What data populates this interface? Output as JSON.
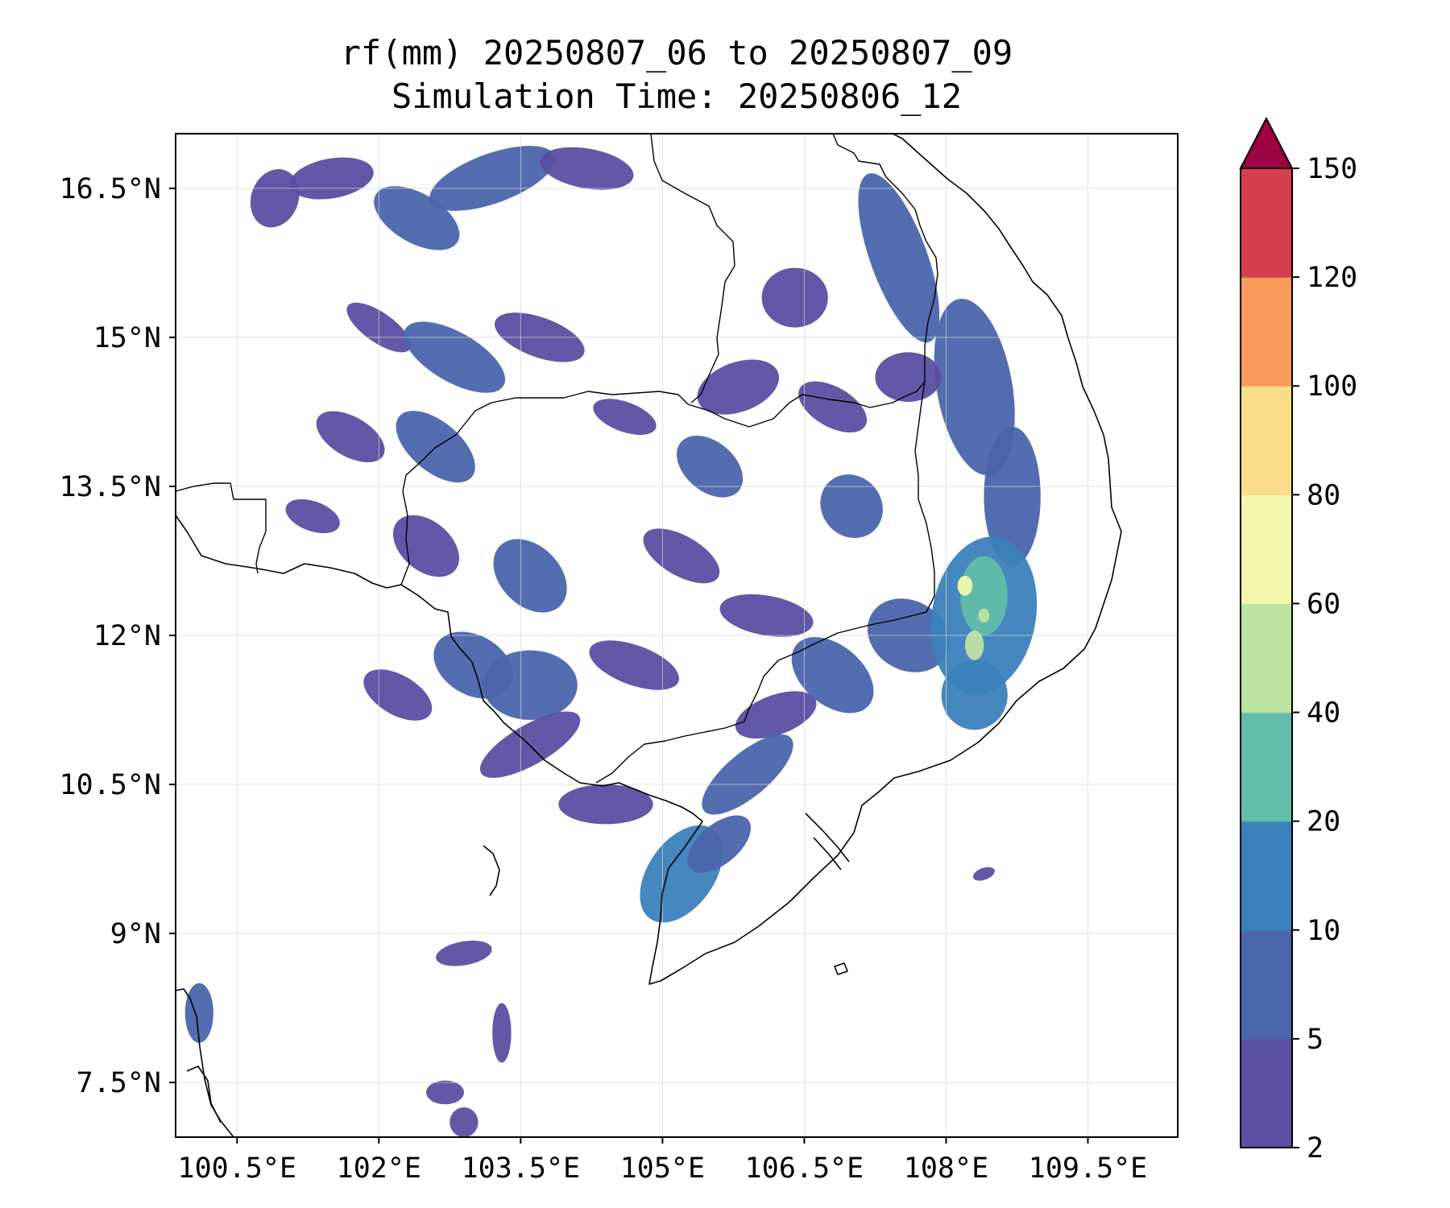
{
  "title": {
    "line1": "rf(mm) 20250807_06 to 20250807_09",
    "line2": "Simulation Time: 20250806_12"
  },
  "map": {
    "lon_range": [
      99.85,
      110.45
    ],
    "lat_range": [
      6.95,
      17.05
    ],
    "lon_ticks": [
      {
        "value": 100.5,
        "label": "100.5°E"
      },
      {
        "value": 102.0,
        "label": "102°E"
      },
      {
        "value": 103.5,
        "label": "103.5°E"
      },
      {
        "value": 105.0,
        "label": "105°E"
      },
      {
        "value": 106.5,
        "label": "106.5°E"
      },
      {
        "value": 108.0,
        "label": "108°E"
      },
      {
        "value": 109.5,
        "label": "109.5°E"
      }
    ],
    "lat_ticks": [
      {
        "value": 16.5,
        "label": "16.5°N"
      },
      {
        "value": 15.0,
        "label": "15°N"
      },
      {
        "value": 13.5,
        "label": "13.5°N"
      },
      {
        "value": 12.0,
        "label": "12°N"
      },
      {
        "value": 10.5,
        "label": "10.5°N"
      },
      {
        "value": 9.0,
        "label": "9°N"
      },
      {
        "value": 7.5,
        "label": "7.5°N"
      }
    ],
    "grid": true
  },
  "colorbar": {
    "levels": [
      {
        "value": 2,
        "label": "2"
      },
      {
        "value": 5,
        "label": "5"
      },
      {
        "value": 10,
        "label": "10"
      },
      {
        "value": 20,
        "label": "20"
      },
      {
        "value": 40,
        "label": "40"
      },
      {
        "value": 60,
        "label": "60"
      },
      {
        "value": 80,
        "label": "80"
      },
      {
        "value": 100,
        "label": "100"
      },
      {
        "value": 120,
        "label": "120"
      },
      {
        "value": 150,
        "label": "150"
      }
    ],
    "colors": [
      "#5a4fa2",
      "#4b65ad",
      "#3b81bb",
      "#62bda8",
      "#bde3a0",
      "#f2f8ab",
      "#fbdd89",
      "#f89b5a",
      "#d53e4f"
    ],
    "extend_color": "#9e0142"
  },
  "rain_cells": [
    {
      "lon": 100.9,
      "lat": 16.4,
      "rx": 0.25,
      "ry": 0.3,
      "rot": 20,
      "level": 0
    },
    {
      "lon": 101.5,
      "lat": 16.6,
      "rx": 0.45,
      "ry": 0.2,
      "rot": -10,
      "level": 0
    },
    {
      "lon": 102.4,
      "lat": 16.2,
      "rx": 0.5,
      "ry": 0.25,
      "rot": 30,
      "level": 1
    },
    {
      "lon": 103.2,
      "lat": 16.6,
      "rx": 0.7,
      "ry": 0.25,
      "rot": -20,
      "level": 1
    },
    {
      "lon": 104.2,
      "lat": 16.7,
      "rx": 0.5,
      "ry": 0.2,
      "rot": 10,
      "level": 0
    },
    {
      "lon": 102.0,
      "lat": 15.1,
      "rx": 0.4,
      "ry": 0.15,
      "rot": 35,
      "level": 0
    },
    {
      "lon": 102.8,
      "lat": 14.8,
      "rx": 0.6,
      "ry": 0.25,
      "rot": 30,
      "level": 1
    },
    {
      "lon": 103.7,
      "lat": 15.0,
      "rx": 0.5,
      "ry": 0.2,
      "rot": 20,
      "level": 0
    },
    {
      "lon": 101.7,
      "lat": 14.0,
      "rx": 0.4,
      "ry": 0.2,
      "rot": 30,
      "level": 0
    },
    {
      "lon": 102.6,
      "lat": 13.9,
      "rx": 0.5,
      "ry": 0.25,
      "rot": 40,
      "level": 1
    },
    {
      "lon": 101.3,
      "lat": 13.2,
      "rx": 0.3,
      "ry": 0.15,
      "rot": 20,
      "level": 0
    },
    {
      "lon": 102.5,
      "lat": 12.9,
      "rx": 0.4,
      "ry": 0.25,
      "rot": 40,
      "level": 0
    },
    {
      "lon": 103.6,
      "lat": 12.6,
      "rx": 0.45,
      "ry": 0.3,
      "rot": 45,
      "level": 1
    },
    {
      "lon": 103.0,
      "lat": 11.7,
      "rx": 0.45,
      "ry": 0.3,
      "rot": 30,
      "level": 1
    },
    {
      "lon": 103.6,
      "lat": 11.5,
      "rx": 0.5,
      "ry": 0.35,
      "rot": 0,
      "level": 1
    },
    {
      "lon": 102.2,
      "lat": 11.4,
      "rx": 0.4,
      "ry": 0.2,
      "rot": 30,
      "level": 0
    },
    {
      "lon": 103.6,
      "lat": 10.9,
      "rx": 0.6,
      "ry": 0.2,
      "rot": -30,
      "level": 0
    },
    {
      "lon": 104.4,
      "lat": 10.3,
      "rx": 0.5,
      "ry": 0.2,
      "rot": 0,
      "level": 0
    },
    {
      "lon": 104.7,
      "lat": 11.7,
      "rx": 0.5,
      "ry": 0.2,
      "rot": 20,
      "level": 0
    },
    {
      "lon": 105.2,
      "lat": 12.8,
      "rx": 0.45,
      "ry": 0.2,
      "rot": 30,
      "level": 0
    },
    {
      "lon": 105.5,
      "lat": 13.7,
      "rx": 0.4,
      "ry": 0.25,
      "rot": 40,
      "level": 1
    },
    {
      "lon": 104.6,
      "lat": 14.2,
      "rx": 0.35,
      "ry": 0.15,
      "rot": 20,
      "level": 0
    },
    {
      "lon": 105.8,
      "lat": 14.5,
      "rx": 0.45,
      "ry": 0.25,
      "rot": -20,
      "level": 0
    },
    {
      "lon": 106.4,
      "lat": 15.4,
      "rx": 0.35,
      "ry": 0.3,
      "rot": 0,
      "level": 0
    },
    {
      "lon": 106.8,
      "lat": 14.3,
      "rx": 0.4,
      "ry": 0.2,
      "rot": 30,
      "level": 0
    },
    {
      "lon": 107.0,
      "lat": 13.3,
      "rx": 0.35,
      "ry": 0.3,
      "rot": 50,
      "level": 1
    },
    {
      "lon": 106.1,
      "lat": 12.2,
      "rx": 0.5,
      "ry": 0.2,
      "rot": 10,
      "level": 0
    },
    {
      "lon": 106.2,
      "lat": 11.2,
      "rx": 0.45,
      "ry": 0.2,
      "rot": -20,
      "level": 0
    },
    {
      "lon": 106.8,
      "lat": 11.6,
      "rx": 0.5,
      "ry": 0.3,
      "rot": 40,
      "level": 1
    },
    {
      "lon": 107.6,
      "lat": 12.0,
      "rx": 0.45,
      "ry": 0.35,
      "rot": 30,
      "level": 1
    },
    {
      "lon": 105.9,
      "lat": 10.6,
      "rx": 0.6,
      "ry": 0.22,
      "rot": -40,
      "level": 1
    },
    {
      "lon": 105.2,
      "lat": 9.6,
      "rx": 0.35,
      "ry": 0.55,
      "rot": 35,
      "level": 2
    },
    {
      "lon": 105.6,
      "lat": 9.9,
      "rx": 0.4,
      "ry": 0.2,
      "rot": -40,
      "level": 1
    },
    {
      "lon": 107.5,
      "lat": 15.8,
      "rx": 0.3,
      "ry": 0.9,
      "rot": -20,
      "level": 1
    },
    {
      "lon": 108.3,
      "lat": 14.5,
      "rx": 0.4,
      "ry": 0.9,
      "rot": -10,
      "level": 1
    },
    {
      "lon": 108.7,
      "lat": 13.4,
      "rx": 0.3,
      "ry": 0.7,
      "rot": 0,
      "level": 1
    },
    {
      "lon": 107.6,
      "lat": 14.6,
      "rx": 0.35,
      "ry": 0.25,
      "rot": 0,
      "level": 0
    },
    {
      "lon": 108.4,
      "lat": 12.2,
      "rx": 0.55,
      "ry": 0.8,
      "rot": 10,
      "level": 2
    },
    {
      "lon": 108.3,
      "lat": 11.4,
      "rx": 0.35,
      "ry": 0.35,
      "rot": 0,
      "level": 2
    },
    {
      "lon": 108.4,
      "lat": 12.4,
      "rx": 0.25,
      "ry": 0.4,
      "rot": 0,
      "level": 3
    },
    {
      "lon": 108.3,
      "lat": 11.9,
      "rx": 0.1,
      "ry": 0.15,
      "rot": 0,
      "level": 4
    },
    {
      "lon": 108.2,
      "lat": 12.5,
      "rx": 0.08,
      "ry": 0.1,
      "rot": 0,
      "level": 5
    },
    {
      "lon": 108.4,
      "lat": 12.2,
      "rx": 0.06,
      "ry": 0.07,
      "rot": 0,
      "level": 4
    },
    {
      "lon": 100.1,
      "lat": 8.2,
      "rx": 0.15,
      "ry": 0.3,
      "rot": 0,
      "level": 1
    },
    {
      "lon": 102.9,
      "lat": 8.8,
      "rx": 0.3,
      "ry": 0.12,
      "rot": -10,
      "level": 0
    },
    {
      "lon": 103.3,
      "lat": 8.0,
      "rx": 0.1,
      "ry": 0.3,
      "rot": 0,
      "level": 0
    },
    {
      "lon": 102.7,
      "lat": 7.4,
      "rx": 0.2,
      "ry": 0.12,
      "rot": 0,
      "level": 0
    },
    {
      "lon": 102.9,
      "lat": 7.1,
      "rx": 0.15,
      "ry": 0.15,
      "rot": 0,
      "level": 0
    },
    {
      "lon": 108.4,
      "lat": 9.6,
      "rx": 0.12,
      "ry": 0.06,
      "rot": -20,
      "level": 0
    }
  ]
}
